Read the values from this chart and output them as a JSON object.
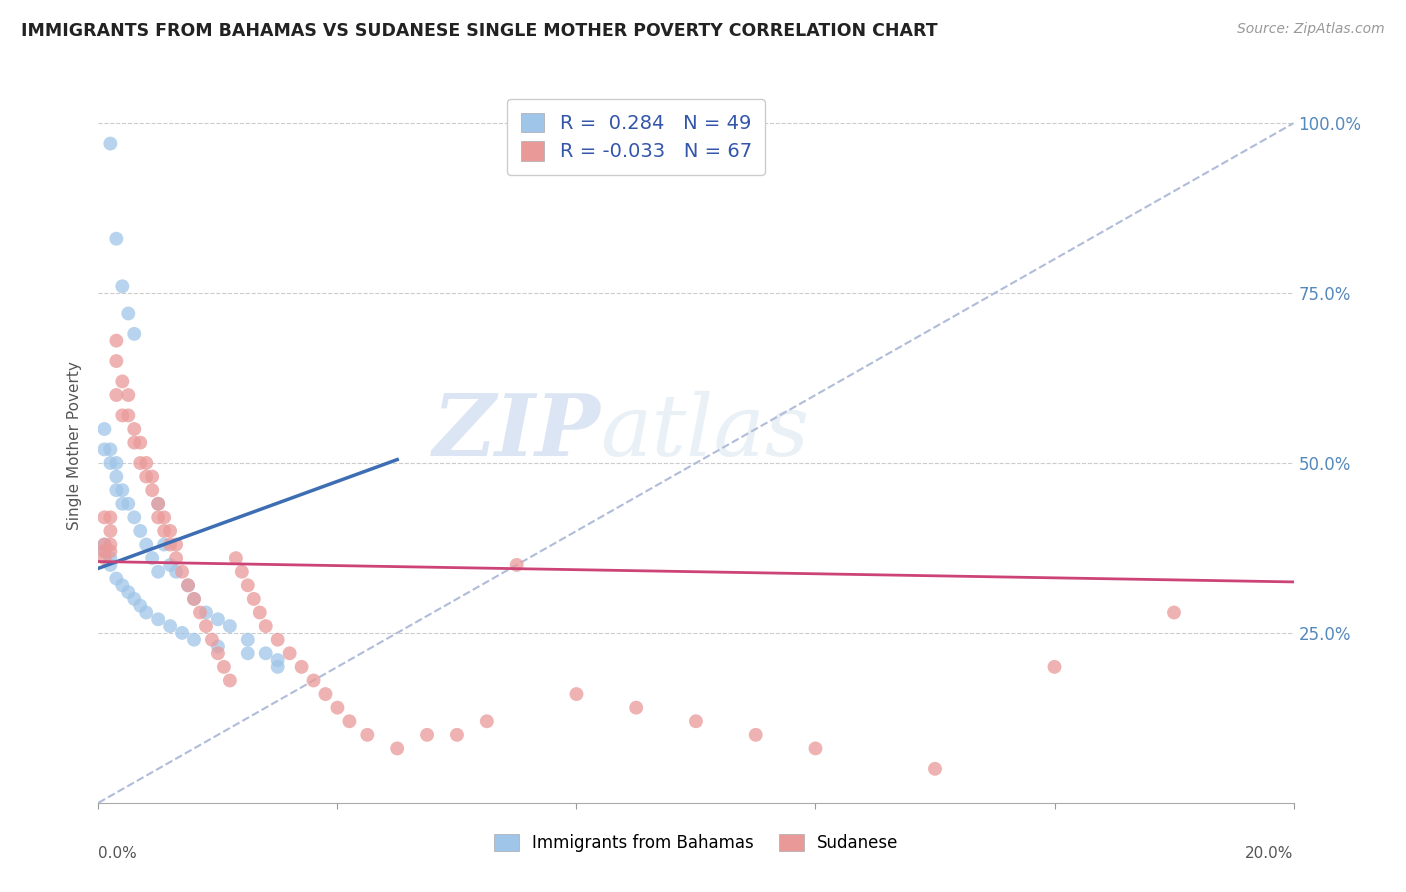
{
  "title": "IMMIGRANTS FROM BAHAMAS VS SUDANESE SINGLE MOTHER POVERTY CORRELATION CHART",
  "source": "Source: ZipAtlas.com",
  "ylabel": "Single Mother Poverty",
  "yticks": [
    0.0,
    0.25,
    0.5,
    0.75,
    1.0
  ],
  "ytick_labels": [
    "",
    "25.0%",
    "50.0%",
    "75.0%",
    "100.0%"
  ],
  "xlim": [
    0.0,
    0.2
  ],
  "ylim": [
    0.0,
    1.05
  ],
  "color_blue": "#9fc5e8",
  "color_pink": "#ea9999",
  "trendline_blue_color": "#3d6eb4",
  "trendline_pink_color": "#cc4477",
  "trendline_dashed_color": "#b0bcd8",
  "watermark_zip": "ZIP",
  "watermark_atlas": "atlas",
  "bahamas_x": [
    0.002,
    0.003,
    0.004,
    0.005,
    0.006,
    0.001,
    0.001,
    0.002,
    0.002,
    0.003,
    0.003,
    0.003,
    0.004,
    0.004,
    0.005,
    0.006,
    0.007,
    0.008,
    0.009,
    0.01,
    0.01,
    0.011,
    0.012,
    0.013,
    0.015,
    0.016,
    0.018,
    0.02,
    0.022,
    0.025,
    0.028,
    0.03,
    0.001,
    0.001,
    0.002,
    0.002,
    0.003,
    0.004,
    0.005,
    0.006,
    0.007,
    0.008,
    0.01,
    0.012,
    0.014,
    0.016,
    0.02,
    0.025,
    0.03
  ],
  "bahamas_y": [
    0.97,
    0.83,
    0.76,
    0.72,
    0.69,
    0.55,
    0.52,
    0.52,
    0.5,
    0.5,
    0.48,
    0.46,
    0.44,
    0.46,
    0.44,
    0.42,
    0.4,
    0.38,
    0.36,
    0.34,
    0.44,
    0.38,
    0.35,
    0.34,
    0.32,
    0.3,
    0.28,
    0.27,
    0.26,
    0.24,
    0.22,
    0.2,
    0.38,
    0.37,
    0.36,
    0.35,
    0.33,
    0.32,
    0.31,
    0.3,
    0.29,
    0.28,
    0.27,
    0.26,
    0.25,
    0.24,
    0.23,
    0.22,
    0.21
  ],
  "sudanese_x": [
    0.001,
    0.001,
    0.001,
    0.001,
    0.002,
    0.002,
    0.002,
    0.002,
    0.003,
    0.003,
    0.003,
    0.004,
    0.004,
    0.005,
    0.005,
    0.006,
    0.006,
    0.007,
    0.007,
    0.008,
    0.008,
    0.009,
    0.009,
    0.01,
    0.01,
    0.011,
    0.011,
    0.012,
    0.012,
    0.013,
    0.013,
    0.014,
    0.015,
    0.016,
    0.017,
    0.018,
    0.019,
    0.02,
    0.021,
    0.022,
    0.023,
    0.024,
    0.025,
    0.026,
    0.027,
    0.028,
    0.03,
    0.032,
    0.034,
    0.036,
    0.038,
    0.04,
    0.042,
    0.045,
    0.05,
    0.055,
    0.06,
    0.065,
    0.07,
    0.08,
    0.09,
    0.1,
    0.11,
    0.12,
    0.14,
    0.16,
    0.18
  ],
  "sudanese_y": [
    0.36,
    0.37,
    0.38,
    0.42,
    0.37,
    0.38,
    0.4,
    0.42,
    0.6,
    0.65,
    0.68,
    0.57,
    0.62,
    0.57,
    0.6,
    0.53,
    0.55,
    0.5,
    0.53,
    0.48,
    0.5,
    0.46,
    0.48,
    0.42,
    0.44,
    0.4,
    0.42,
    0.38,
    0.4,
    0.36,
    0.38,
    0.34,
    0.32,
    0.3,
    0.28,
    0.26,
    0.24,
    0.22,
    0.2,
    0.18,
    0.36,
    0.34,
    0.32,
    0.3,
    0.28,
    0.26,
    0.24,
    0.22,
    0.2,
    0.18,
    0.16,
    0.14,
    0.12,
    0.1,
    0.08,
    0.1,
    0.1,
    0.12,
    0.35,
    0.16,
    0.14,
    0.12,
    0.1,
    0.08,
    0.05,
    0.2,
    0.28
  ],
  "bah_trend_x": [
    0.0,
    0.05
  ],
  "bah_trend_y": [
    0.345,
    0.505
  ],
  "sud_trend_x": [
    0.0,
    0.2
  ],
  "sud_trend_y": [
    0.355,
    0.325
  ]
}
